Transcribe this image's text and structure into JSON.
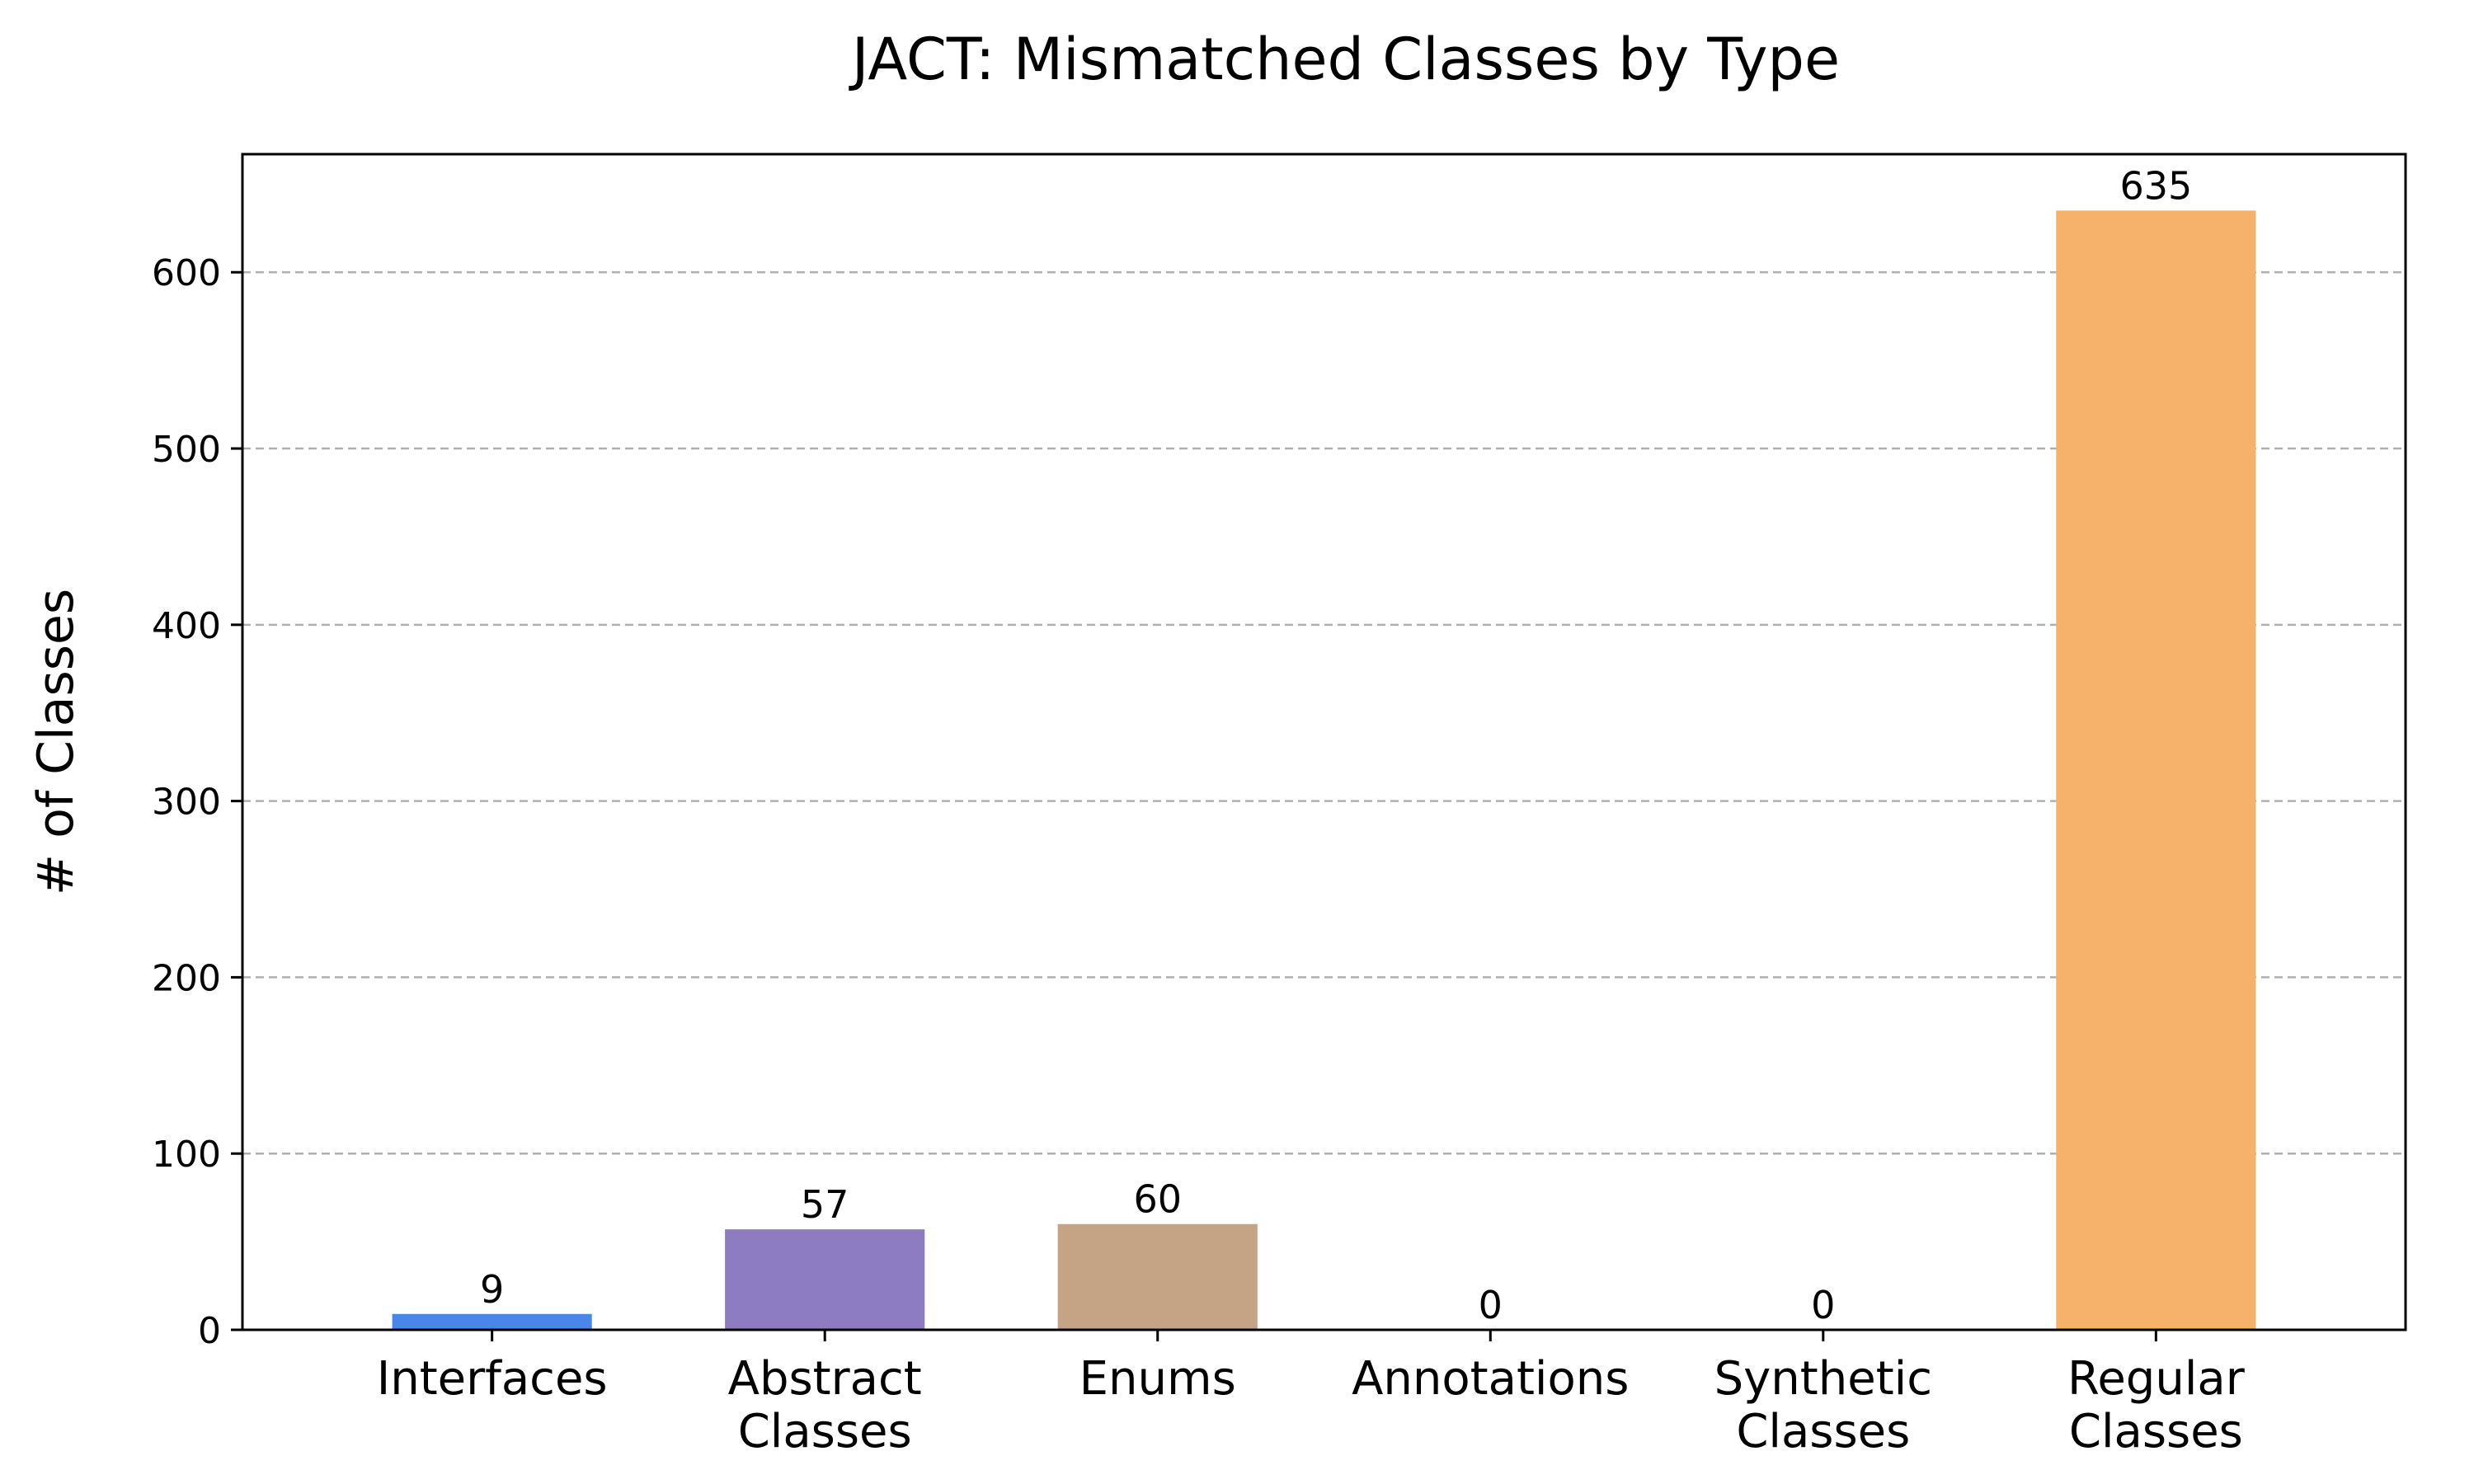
{
  "chart_data": {
    "type": "bar",
    "title": "JACT: Mismatched Classes by Type",
    "xlabel": "",
    "ylabel": "# of Classes",
    "categories": [
      [
        "Interfaces"
      ],
      [
        "Abstract",
        "Classes"
      ],
      [
        "Enums"
      ],
      [
        "Annotations"
      ],
      [
        "Synthetic",
        "Classes"
      ],
      [
        "Regular",
        "Classes"
      ]
    ],
    "values": [
      9,
      57,
      60,
      0,
      0,
      635
    ],
    "colors": [
      "#4a86e8",
      "#8e7cc3",
      "#c4a484",
      "#b4a7d6",
      "#b6d7a8",
      "#f6b26b"
    ],
    "ylim": [
      0,
      667
    ],
    "yticks": [
      0,
      100,
      200,
      300,
      400,
      500,
      600
    ],
    "grid": "y-dashed",
    "legend": "none"
  }
}
